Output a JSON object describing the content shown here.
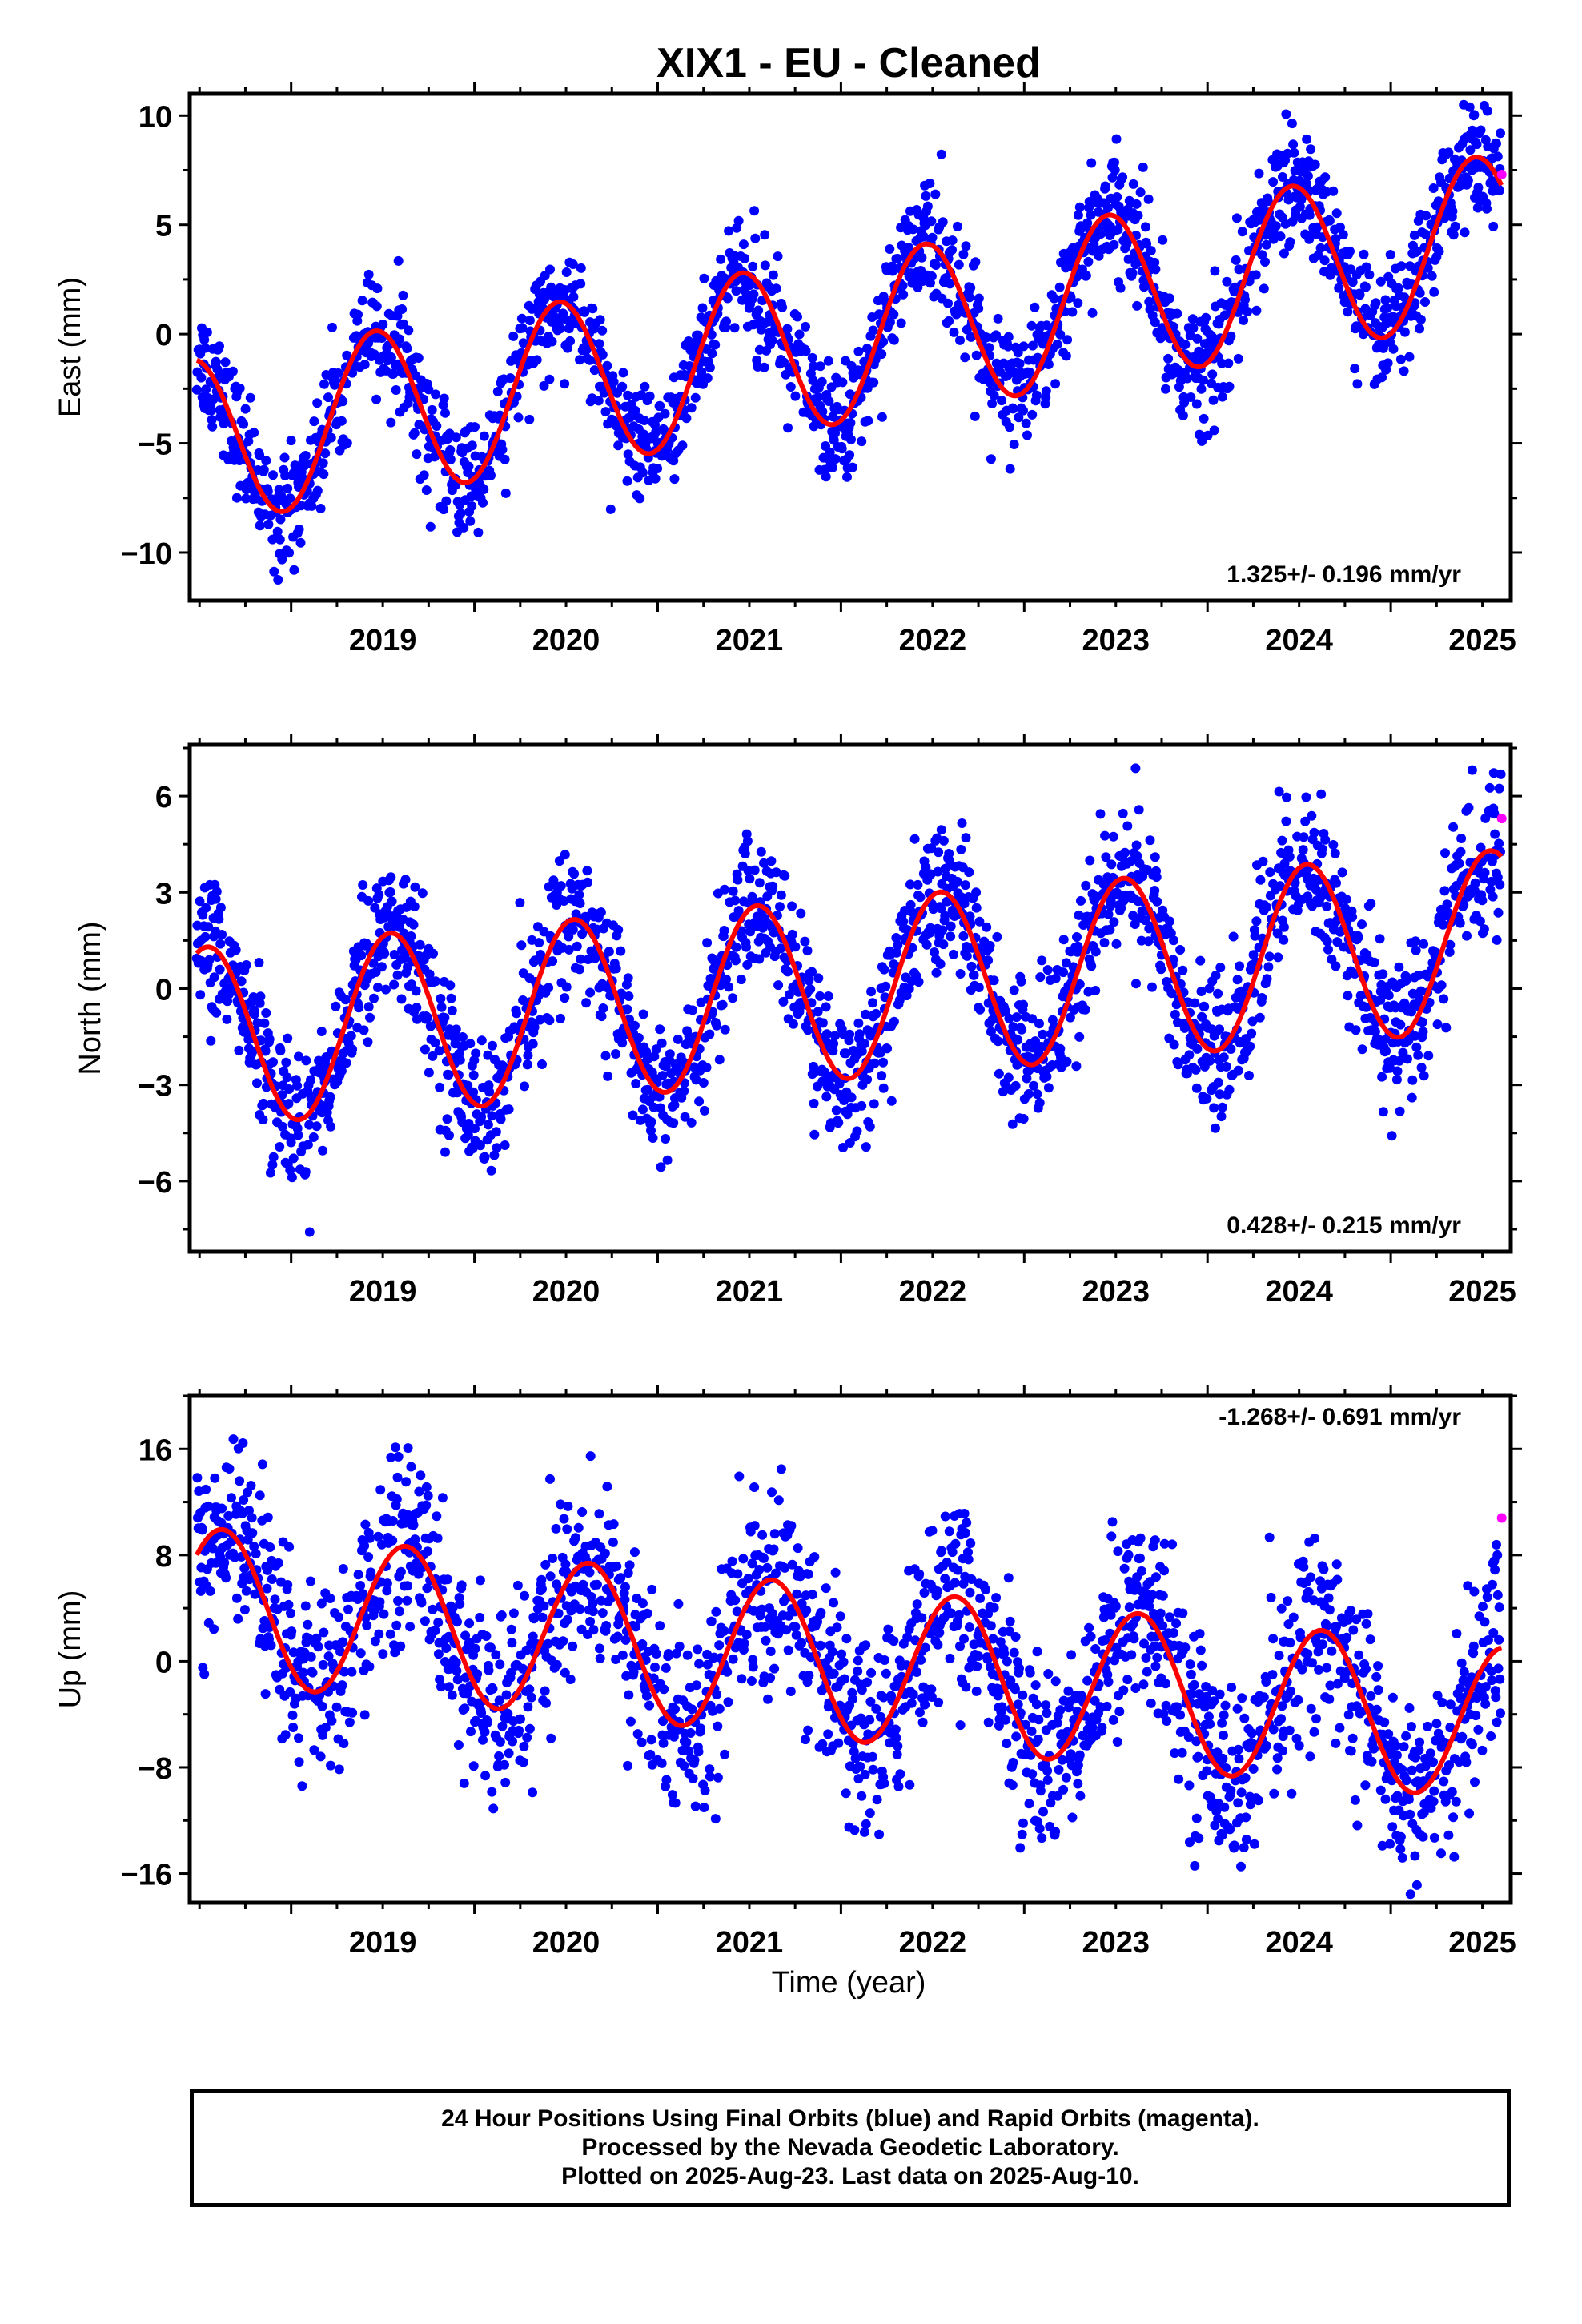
{
  "title": "XIX1  - EU - Cleaned",
  "xlabel": "Time (year)",
  "x_ticks": [
    "2019",
    "2020",
    "2021",
    "2022",
    "2023",
    "2024",
    "2025"
  ],
  "footer": {
    "line1": "24 Hour Positions Using Final Orbits (blue) and Rapid Orbits (magenta).",
    "line2": "Processed by the Nevada Geodetic Laboratory.",
    "line3": "Plotted on 2025-Aug-23. Last data on 2025-Aug-10."
  },
  "colors": {
    "final_orbits": "#0000ff",
    "rapid_orbits": "#ff00ff",
    "model_fit": "#ff0000",
    "frame": "#000000"
  },
  "chart_data": [
    {
      "type": "scatter",
      "ylabel": "East (mm)",
      "rate_label": "1.325+/- 0.196 mm/yr",
      "xlim": [
        "2018-06-13",
        "2025-08-28"
      ],
      "ylim": [
        -12.2,
        11
      ],
      "y_ticks": [
        10,
        5,
        0,
        -5,
        -10
      ],
      "grid": false,
      "series": [
        {
          "name": "final",
          "color": "#0000ff",
          "description": "daily positions 2018-06-27 to 2025-08-09",
          "trend_mm_per_yr": 1.325,
          "annual_amplitude_mm": 3.8,
          "peak_month": "Jun",
          "scatter_sd_mm": 1.3
        },
        {
          "name": "rapid",
          "color": "#ff00ff",
          "points": [
            {
              "x": "2025-08-10",
              "y": 7.3
            }
          ]
        },
        {
          "name": "model",
          "color": "#ff0000",
          "start": {
            "x": "2018-06-27",
            "y": -1.2
          },
          "end": {
            "x": "2025-08-10",
            "y": 7.3
          },
          "peaks": [
            {
              "x": "2019-07-01",
              "y": 0.1
            },
            {
              "x": "2020-07-01",
              "y": 1.4
            },
            {
              "x": "2021-07-01",
              "y": 2.8
            },
            {
              "x": "2022-07-01",
              "y": 4.1
            },
            {
              "x": "2023-07-01",
              "y": 5.4
            },
            {
              "x": "2024-07-01",
              "y": 6.7
            }
          ]
        }
      ]
    },
    {
      "type": "scatter",
      "ylabel": "North (mm)",
      "rate_label": "0.428+/- 0.215 mm/yr",
      "xlim": [
        "2018-06-13",
        "2025-08-28"
      ],
      "ylim": [
        -8.2,
        7.6
      ],
      "y_ticks": [
        6,
        3,
        0,
        -3,
        -6
      ],
      "grid": false,
      "series": [
        {
          "name": "final",
          "color": "#0000ff",
          "description": "daily positions 2018-06-27 to 2025-08-09",
          "trend_mm_per_yr": 0.428,
          "annual_amplitude_mm": 2.8,
          "peak_month": "Jul",
          "scatter_sd_mm": 1.1
        },
        {
          "name": "rapid",
          "color": "#ff00ff",
          "points": [
            {
              "x": "2025-08-10",
              "y": 5.3
            }
          ]
        },
        {
          "name": "model",
          "color": "#ff0000",
          "start": {
            "x": "2018-06-27",
            "y": 1.1
          },
          "end": {
            "x": "2025-08-10",
            "y": 3.8
          },
          "troughs": [
            {
              "x": "2019-01-20",
              "y": -4.1
            },
            {
              "x": "2020-01-20",
              "y": -3.7
            },
            {
              "x": "2021-01-20",
              "y": -3.2
            },
            {
              "x": "2022-01-20",
              "y": -2.8
            },
            {
              "x": "2023-01-20",
              "y": -2.4
            },
            {
              "x": "2024-01-20",
              "y": -1.9
            },
            {
              "x": "2025-01-20",
              "y": -1.5
            }
          ]
        }
      ]
    },
    {
      "type": "scatter",
      "ylabel": "Up (mm)",
      "rate_label": "-1.268+/- 0.691 mm/yr",
      "xlim": [
        "2018-06-13",
        "2025-08-28"
      ],
      "ylim": [
        -18.2,
        20
      ],
      "y_ticks": [
        16,
        8,
        0,
        -8,
        -16
      ],
      "grid": false,
      "series": [
        {
          "name": "final",
          "color": "#0000ff",
          "description": "daily positions 2018-06-27 to 2025-08-09",
          "trend_mm_per_yr": -1.268,
          "annual_amplitude_mm": 5.8,
          "peak_month": "Aug",
          "scatter_sd_mm": 3.6
        },
        {
          "name": "rapid",
          "color": "#ff00ff",
          "points": [
            {
              "x": "2025-08-10",
              "y": 10.8
            }
          ]
        },
        {
          "name": "model",
          "color": "#ff0000",
          "start": {
            "x": "2018-06-27",
            "y": 8.0
          },
          "end": {
            "x": "2025-08-10",
            "y": 1.2
          },
          "peaks": [
            {
              "x": "2018-08-15",
              "y": 10.0
            },
            {
              "x": "2019-08-15",
              "y": 8.8
            },
            {
              "x": "2020-08-15",
              "y": 7.5
            },
            {
              "x": "2021-08-15",
              "y": 6.2
            },
            {
              "x": "2022-08-15",
              "y": 5.0
            },
            {
              "x": "2023-08-15",
              "y": 3.8
            },
            {
              "x": "2024-08-15",
              "y": 2.5
            }
          ]
        }
      ]
    }
  ]
}
